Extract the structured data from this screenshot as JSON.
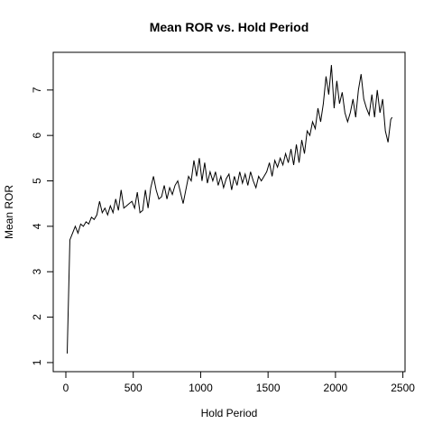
{
  "chart_data": {
    "type": "line",
    "title": "Mean ROR vs. Hold Period",
    "xlabel": "Hold Period",
    "ylabel": "Mean ROR",
    "color": "#000000",
    "x": [
      10,
      30,
      50,
      70,
      90,
      110,
      130,
      150,
      170,
      190,
      210,
      230,
      250,
      270,
      290,
      310,
      330,
      350,
      370,
      390,
      410,
      430,
      450,
      470,
      490,
      510,
      530,
      550,
      570,
      590,
      610,
      630,
      650,
      670,
      690,
      710,
      730,
      750,
      770,
      790,
      810,
      830,
      850,
      870,
      890,
      910,
      930,
      950,
      970,
      990,
      1010,
      1030,
      1050,
      1070,
      1090,
      1110,
      1130,
      1150,
      1170,
      1190,
      1210,
      1230,
      1250,
      1270,
      1290,
      1310,
      1330,
      1350,
      1370,
      1390,
      1410,
      1430,
      1450,
      1470,
      1490,
      1510,
      1530,
      1550,
      1570,
      1590,
      1610,
      1630,
      1650,
      1670,
      1690,
      1710,
      1730,
      1750,
      1770,
      1790,
      1810,
      1830,
      1850,
      1870,
      1890,
      1910,
      1930,
      1950,
      1970,
      1990,
      2010,
      2030,
      2050,
      2070,
      2090,
      2110,
      2130,
      2150,
      2170,
      2190,
      2210,
      2230,
      2250,
      2270,
      2290,
      2310,
      2330,
      2350,
      2370,
      2390,
      2410,
      2420
    ],
    "values": [
      1.2,
      3.7,
      3.85,
      4.0,
      3.85,
      4.05,
      4.0,
      4.1,
      4.05,
      4.2,
      4.15,
      4.25,
      4.55,
      4.3,
      4.4,
      4.25,
      4.45,
      4.3,
      4.6,
      4.35,
      4.8,
      4.4,
      4.45,
      4.5,
      4.55,
      4.4,
      4.75,
      4.3,
      4.35,
      4.8,
      4.4,
      4.85,
      5.1,
      4.8,
      4.6,
      4.65,
      4.9,
      4.6,
      4.85,
      4.7,
      4.9,
      5.0,
      4.75,
      4.5,
      4.8,
      5.1,
      5.0,
      5.45,
      5.1,
      5.5,
      5.0,
      5.4,
      4.95,
      5.2,
      5.0,
      5.2,
      4.9,
      5.1,
      4.85,
      5.05,
      5.15,
      4.8,
      5.1,
      4.9,
      5.2,
      4.95,
      5.15,
      4.9,
      5.2,
      5.0,
      4.85,
      5.1,
      5.0,
      5.1,
      5.2,
      5.4,
      5.1,
      5.45,
      5.3,
      5.5,
      5.35,
      5.6,
      5.4,
      5.7,
      5.35,
      5.8,
      5.4,
      5.9,
      5.6,
      6.1,
      6.0,
      6.3,
      6.15,
      6.6,
      6.3,
      6.7,
      7.3,
      6.9,
      7.55,
      6.6,
      7.2,
      6.7,
      6.95,
      6.5,
      6.3,
      6.5,
      6.8,
      6.4,
      7.0,
      7.35,
      6.8,
      6.6,
      6.45,
      6.9,
      6.4,
      7.0,
      6.5,
      6.8,
      6.1,
      5.85,
      6.35,
      6.4
    ],
    "xlim": [
      -93.6,
      2516
    ],
    "ylim": [
      0.8,
      7.83
    ],
    "xticks": [
      0,
      500,
      1000,
      1500,
      2000,
      2500
    ],
    "yticks": [
      1,
      2,
      3,
      4,
      5,
      6,
      7
    ]
  }
}
